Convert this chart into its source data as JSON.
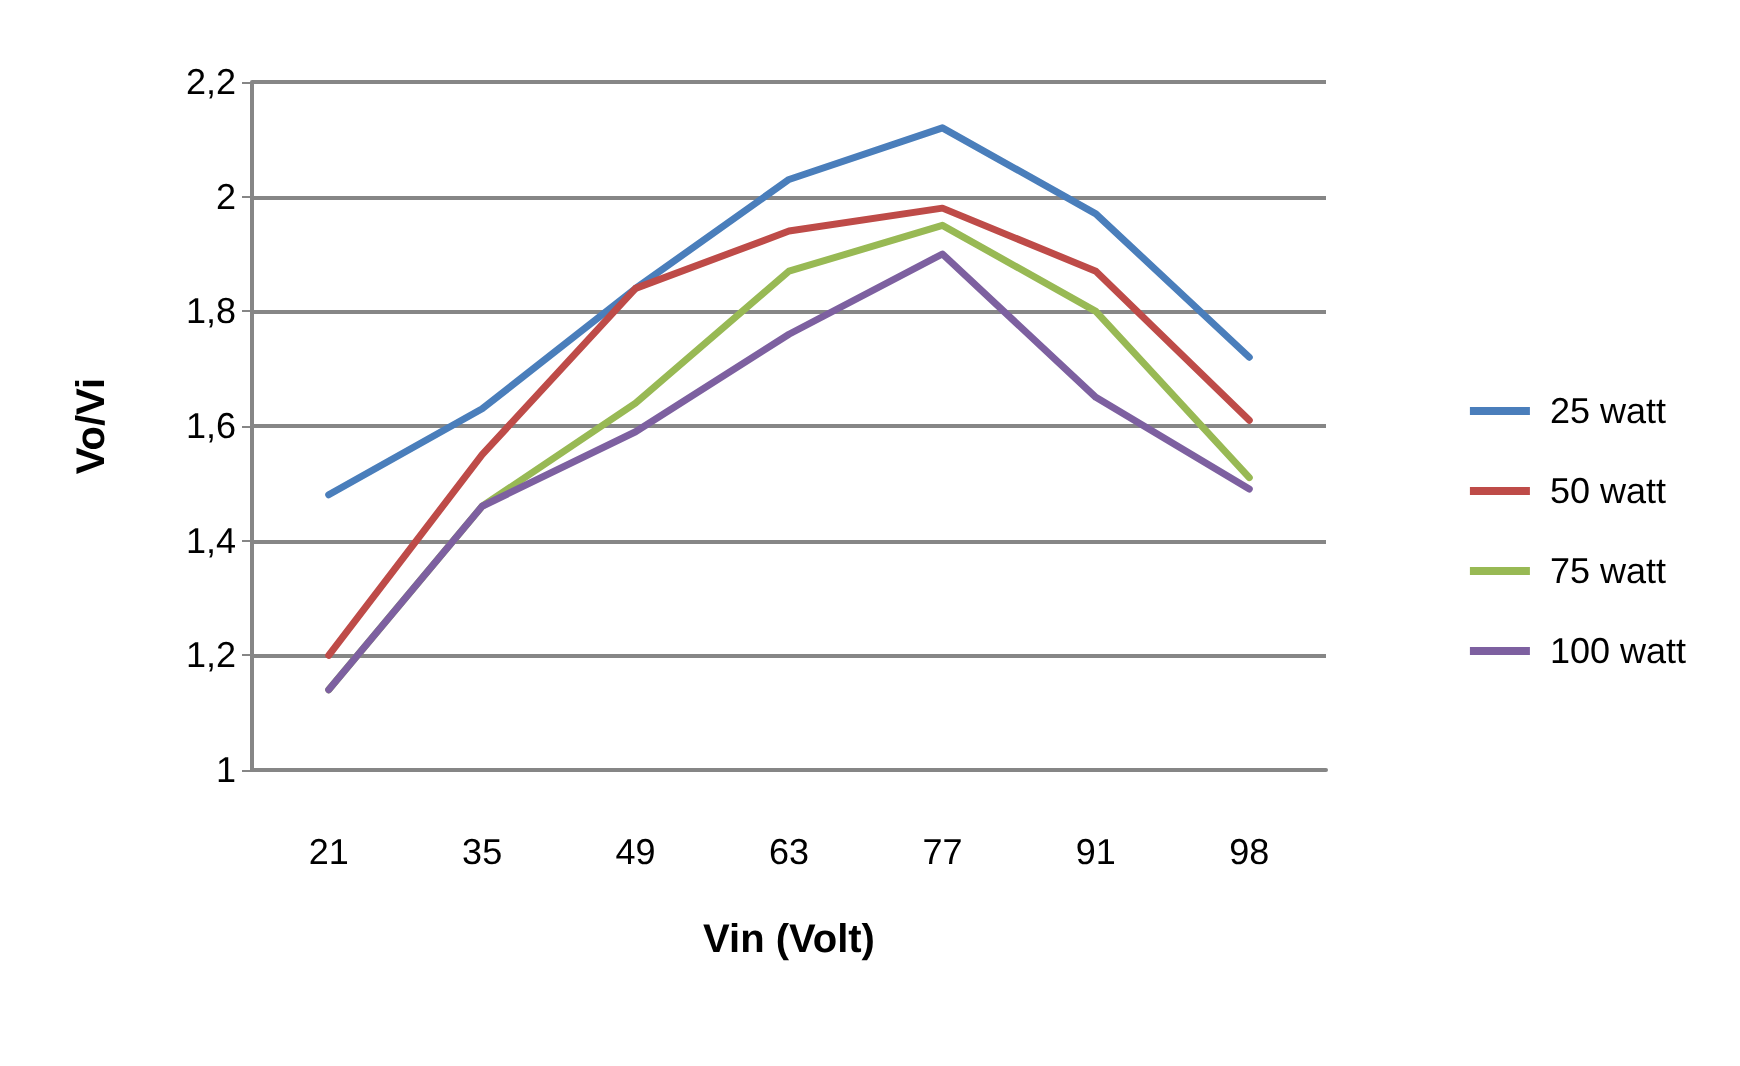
{
  "chart_data": {
    "type": "line",
    "xlabel": "Vin (Volt)",
    "ylabel": "Vo/Vi",
    "categories": [
      "21",
      "35",
      "49",
      "63",
      "77",
      "91",
      "98"
    ],
    "series": [
      {
        "name": "25 watt",
        "color": "#4a7ebb",
        "values": [
          1.48,
          1.63,
          1.84,
          2.03,
          2.12,
          1.97,
          1.72
        ]
      },
      {
        "name": "50 watt",
        "color": "#be4b48",
        "values": [
          1.2,
          1.55,
          1.84,
          1.94,
          1.98,
          1.87,
          1.61
        ]
      },
      {
        "name": "75 watt",
        "color": "#98b954",
        "values": [
          1.14,
          1.46,
          1.64,
          1.87,
          1.95,
          1.8,
          1.51
        ]
      },
      {
        "name": "100 watt",
        "color": "#7d60a0",
        "values": [
          1.14,
          1.46,
          1.59,
          1.76,
          1.9,
          1.65,
          1.49
        ]
      }
    ],
    "ylim": [
      1,
      2.2
    ],
    "yticks": [
      1,
      {
        "value": 1.2,
        "label": "1,2"
      },
      {
        "value": 1.4,
        "label": "1,4"
      },
      {
        "value": 1.6,
        "label": "1,6"
      },
      {
        "value": 1.8,
        "label": "1,8"
      },
      2,
      {
        "value": 2.2,
        "label": "2,2"
      }
    ],
    "grid": "y",
    "legend": "right",
    "marker": "none",
    "line_style": "solid"
  }
}
